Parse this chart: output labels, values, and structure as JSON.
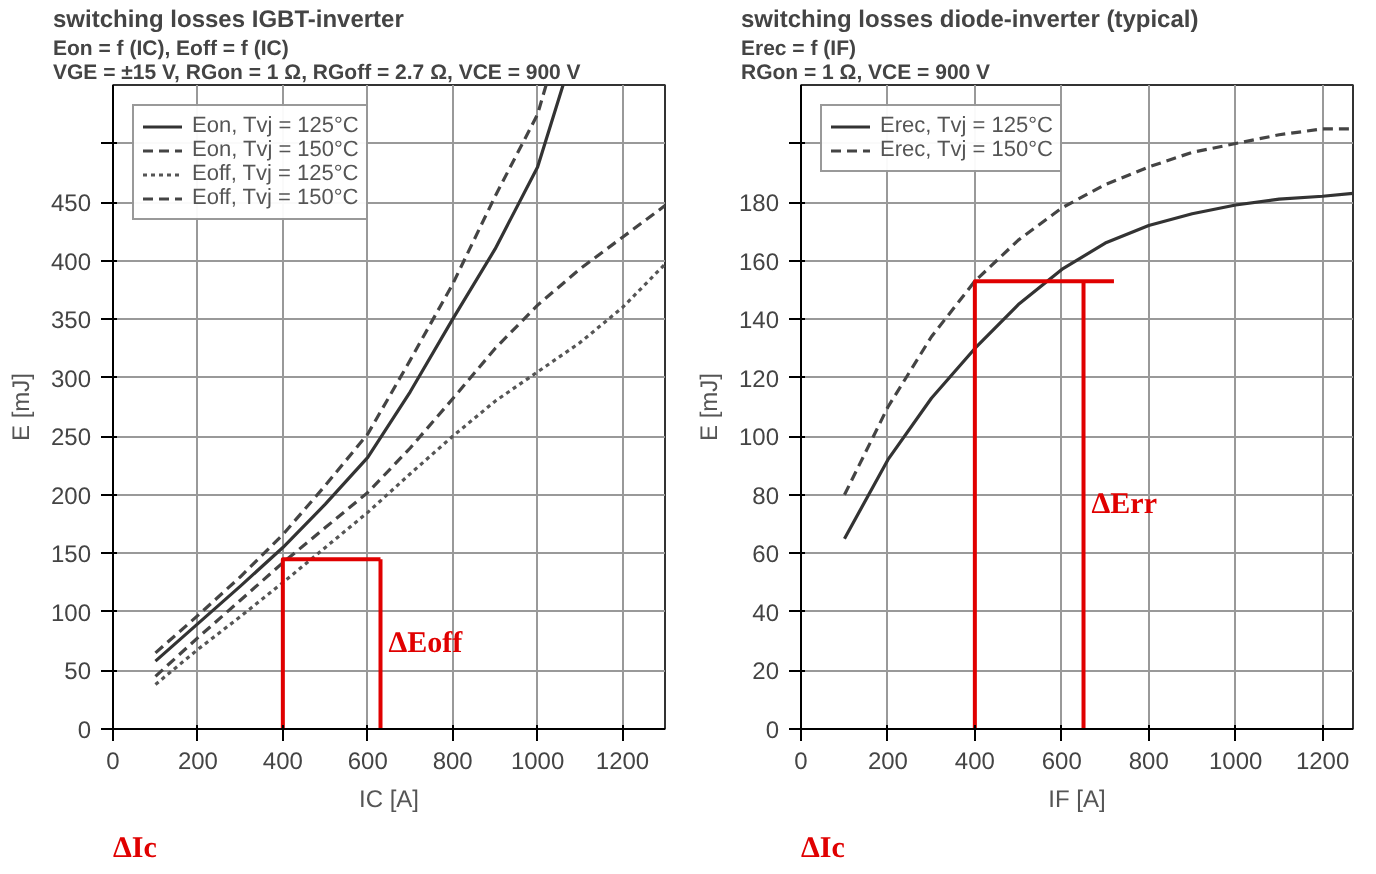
{
  "chart_data": [
    {
      "type": "line",
      "title": "switching losses IGBT-inverter",
      "subtitle": "Eon = f (IC), Eoff = f (IC)\nVGE = ±15 V, RGon = 1 Ω, RGoff = 2.7 Ω, VCE = 900 V",
      "xlabel": "IC [A]",
      "ylabel": "E [mJ]",
      "xlim": [
        0,
        1300
      ],
      "ylim": [
        0,
        550
      ],
      "xticks": [
        0,
        200,
        400,
        600,
        800,
        1000,
        1200
      ],
      "yticks": [
        0,
        50,
        100,
        150,
        200,
        250,
        300,
        350,
        400,
        450,
        {
          "value": 500,
          "label": null
        }
      ],
      "grid": true,
      "legend": "top left",
      "series": [
        {
          "name": "Eon, Tvj = 125°C",
          "color": "#333333",
          "line_style": "solid",
          "x": [
            100,
            200,
            300,
            400,
            500,
            600,
            700,
            800,
            900,
            1000,
            1060
          ],
          "values": [
            58,
            90,
            122,
            155,
            192,
            232,
            288,
            350,
            410,
            480,
            550
          ]
        },
        {
          "name": "Eon, Tvj = 150°C",
          "color": "#444444",
          "line_style": "dashed",
          "x": [
            100,
            200,
            300,
            400,
            500,
            600,
            700,
            800,
            900,
            1000,
            1020
          ],
          "values": [
            65,
            97,
            130,
            166,
            208,
            252,
            315,
            380,
            455,
            525,
            550
          ]
        },
        {
          "name": "Eoff, Tvj = 125°C",
          "color": "#555555",
          "line_style": "dotted",
          "x": [
            100,
            200,
            300,
            400,
            500,
            600,
            700,
            800,
            900,
            1000,
            1100,
            1200,
            1300
          ],
          "values": [
            38,
            68,
            96,
            125,
            155,
            185,
            218,
            250,
            280,
            305,
            330,
            360,
            397
          ]
        },
        {
          "name": "Eoff, Tvj = 150°C",
          "color": "#444444",
          "line_style": "dashed",
          "x": [
            100,
            200,
            300,
            400,
            500,
            600,
            700,
            800,
            900,
            1000,
            1100,
            1200,
            1300
          ],
          "values": [
            45,
            78,
            110,
            142,
            172,
            202,
            240,
            282,
            325,
            362,
            393,
            420,
            447
          ]
        },
        {
          "type": "line",
          "color": "#e00000",
          "line_style": "solid",
          "x": [
            400,
            400,
            630
          ],
          "values": [
            0,
            145,
            145
          ]
        },
        {
          "type": "line",
          "color": "#e00000",
          "line_style": "solid",
          "x": [
            630,
            630
          ],
          "values": [
            0,
            145
          ]
        }
      ],
      "annotations": [
        "ΔEoff",
        "ΔIc"
      ]
    },
    {
      "type": "line",
      "title": "switching losses diode-inverter (typical)",
      "subtitle": "Erec = f (IF)\nRGon = 1 Ω, VCE = 900 V",
      "xlabel": "IF [A]",
      "ylabel": "E [mJ]",
      "xlim": [
        0,
        1270
      ],
      "ylim": [
        0,
        220
      ],
      "xticks": [
        0,
        200,
        400,
        600,
        800,
        1000,
        1200
      ],
      "yticks": [
        0,
        20,
        40,
        60,
        80,
        100,
        120,
        140,
        160,
        180,
        {
          "value": 200,
          "label": null
        }
      ],
      "grid": true,
      "legend": "top left",
      "series": [
        {
          "name": "Erec, Tvj = 125°C",
          "color": "#333333",
          "line_style": "solid",
          "x": [
            100,
            200,
            300,
            400,
            500,
            600,
            700,
            800,
            900,
            1000,
            1100,
            1200,
            1270
          ],
          "values": [
            65,
            92,
            113,
            130,
            145,
            157,
            166,
            172,
            176,
            179,
            181,
            182,
            183
          ]
        },
        {
          "name": "Erec, Tvj = 150°C",
          "color": "#444444",
          "line_style": "dashed",
          "x": [
            100,
            200,
            300,
            400,
            500,
            600,
            700,
            800,
            900,
            1000,
            1100,
            1200,
            1270
          ],
          "values": [
            80,
            110,
            134,
            153,
            167,
            178,
            186,
            192,
            197,
            200,
            203,
            205,
            205
          ]
        },
        {
          "type": "line",
          "color": "#e00000",
          "line_style": "solid",
          "x": [
            400,
            400,
            720
          ],
          "values": [
            0,
            153,
            153
          ]
        },
        {
          "type": "line",
          "color": "#e00000",
          "line_style": "solid",
          "x": [
            650,
            650
          ],
          "values": [
            0,
            153
          ]
        }
      ],
      "annotations": [
        "ΔErr",
        "ΔIc"
      ]
    }
  ]
}
